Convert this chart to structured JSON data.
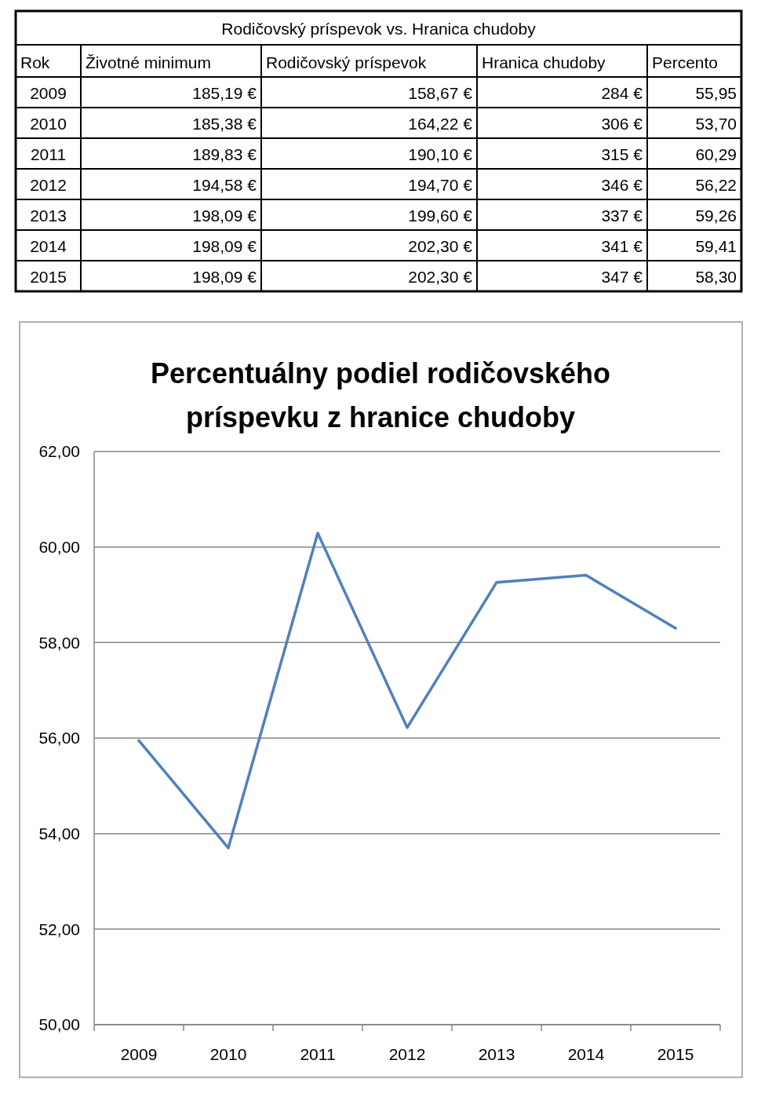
{
  "chart_data": {
    "type": "line",
    "title": "Percentuálny podiel rodičovského príspevku z hranice chudoby",
    "annotations": [
      "Rodičovský príspevok vs. Hranica chudoby",
      "Rok",
      "Životné minimum",
      "Rodičovský príspevok",
      "Hranica chudoby",
      "Percento",
      "185,19 €",
      "158,67 €",
      "284 €",
      "55,95",
      "185,38 €",
      "164,22 €",
      "306 €",
      "53,70",
      "189,83 €",
      "190,10 €",
      "315 €",
      "60,29",
      "194,58 €",
      "194,70 €",
      "346 €",
      "56,22",
      "198,09 €",
      "199,60 €",
      "337 €",
      "59,26",
      "198,09 €",
      "202,30 €",
      "341 €",
      "59,41",
      "198,09 €",
      "202,30 €",
      "347 €",
      "58,30"
    ],
    "categories": [
      "2009",
      "2010",
      "2011",
      "2012",
      "2013",
      "2014",
      "2015"
    ],
    "series": [
      {
        "color": "#4f81bd",
        "values": [
          55.95,
          53.7,
          60.29,
          56.22,
          59.26,
          59.41,
          58.3
        ]
      }
    ],
    "ylim": [
      50,
      62
    ],
    "yticks": [
      {
        "value": 50,
        "label": "50,00"
      },
      {
        "value": 52,
        "label": "52,00"
      },
      {
        "value": 54,
        "label": "54,00"
      },
      {
        "value": 56,
        "label": "56,00"
      },
      {
        "value": 58,
        "label": "58,00"
      },
      {
        "value": 60,
        "label": "60,00"
      },
      {
        "value": 62,
        "label": "62,00"
      }
    ],
    "grid": "y",
    "marker": "none",
    "line_style": "solid"
  }
}
